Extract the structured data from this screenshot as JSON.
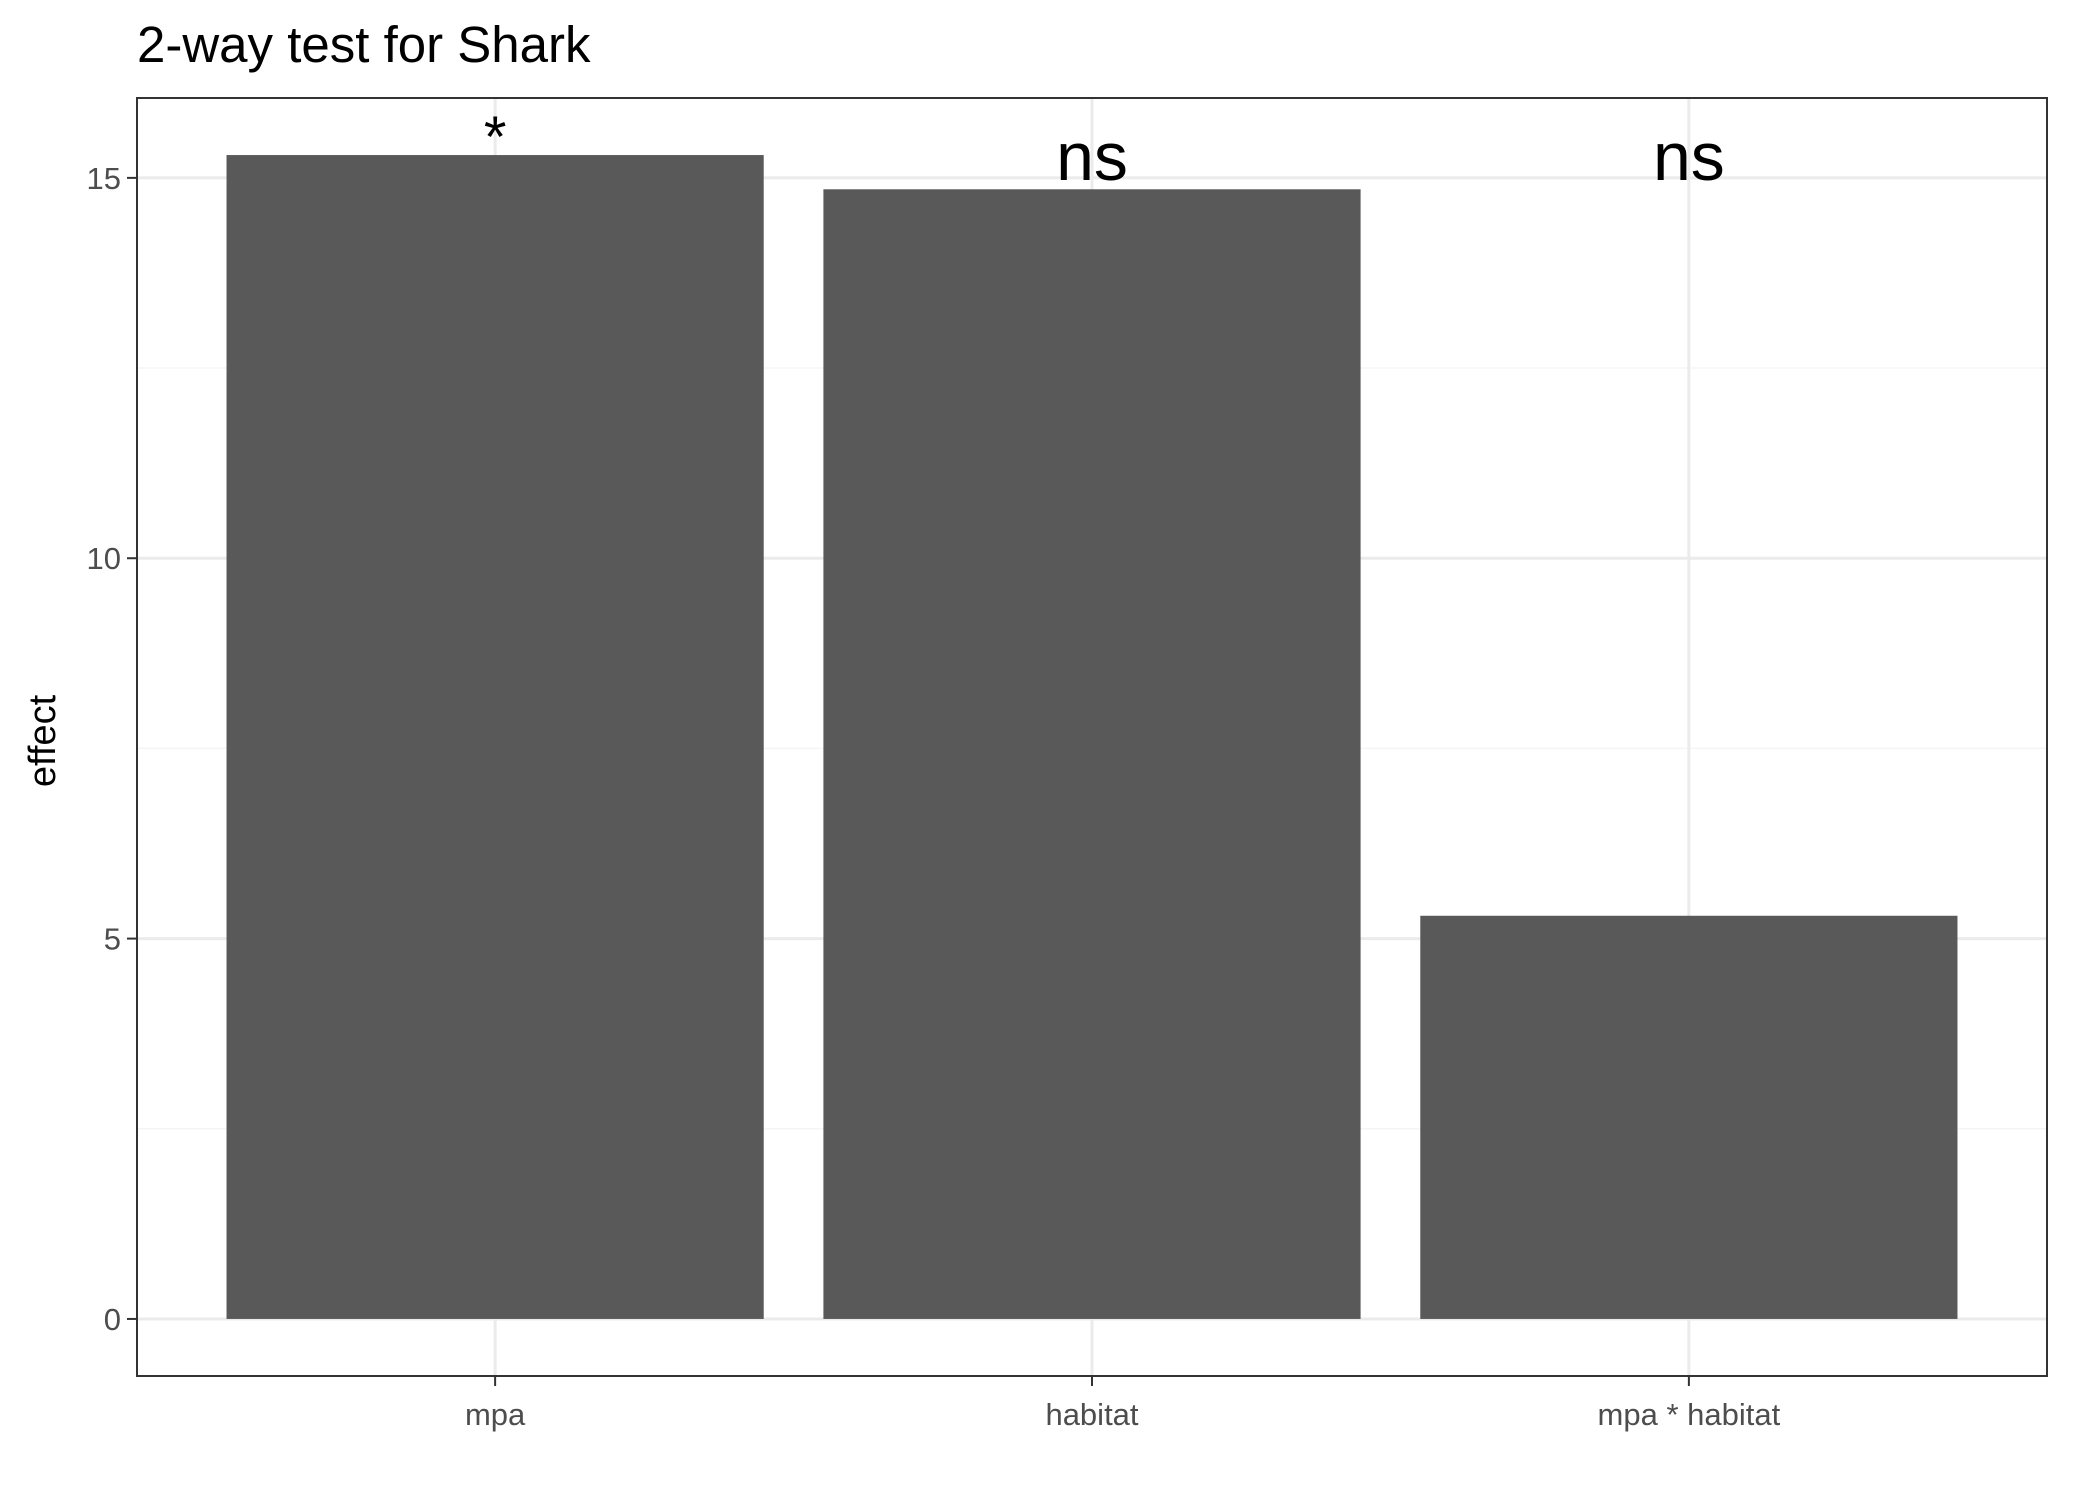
{
  "chart_data": {
    "type": "bar",
    "title": "2-way test for Shark",
    "xlabel": "",
    "ylabel": "effect",
    "categories": [
      "mpa",
      "habitat",
      "mpa * habitat"
    ],
    "values": [
      15.3,
      14.85,
      5.3
    ],
    "annotations": [
      "*",
      "ns",
      "ns"
    ],
    "ylim": [
      -0.75,
      16.05
    ],
    "y_ticks": [
      0,
      5,
      10,
      15
    ],
    "y_tick_labels": [
      "0",
      "5",
      "10",
      "15"
    ],
    "grid": true,
    "legend": "none",
    "colors": {
      "bar": "#595959",
      "panel_border": "#333333",
      "grid_major": "#ebebeb",
      "grid_minor": "#f5f5f5",
      "tick_text": "#4d4d4d"
    }
  }
}
